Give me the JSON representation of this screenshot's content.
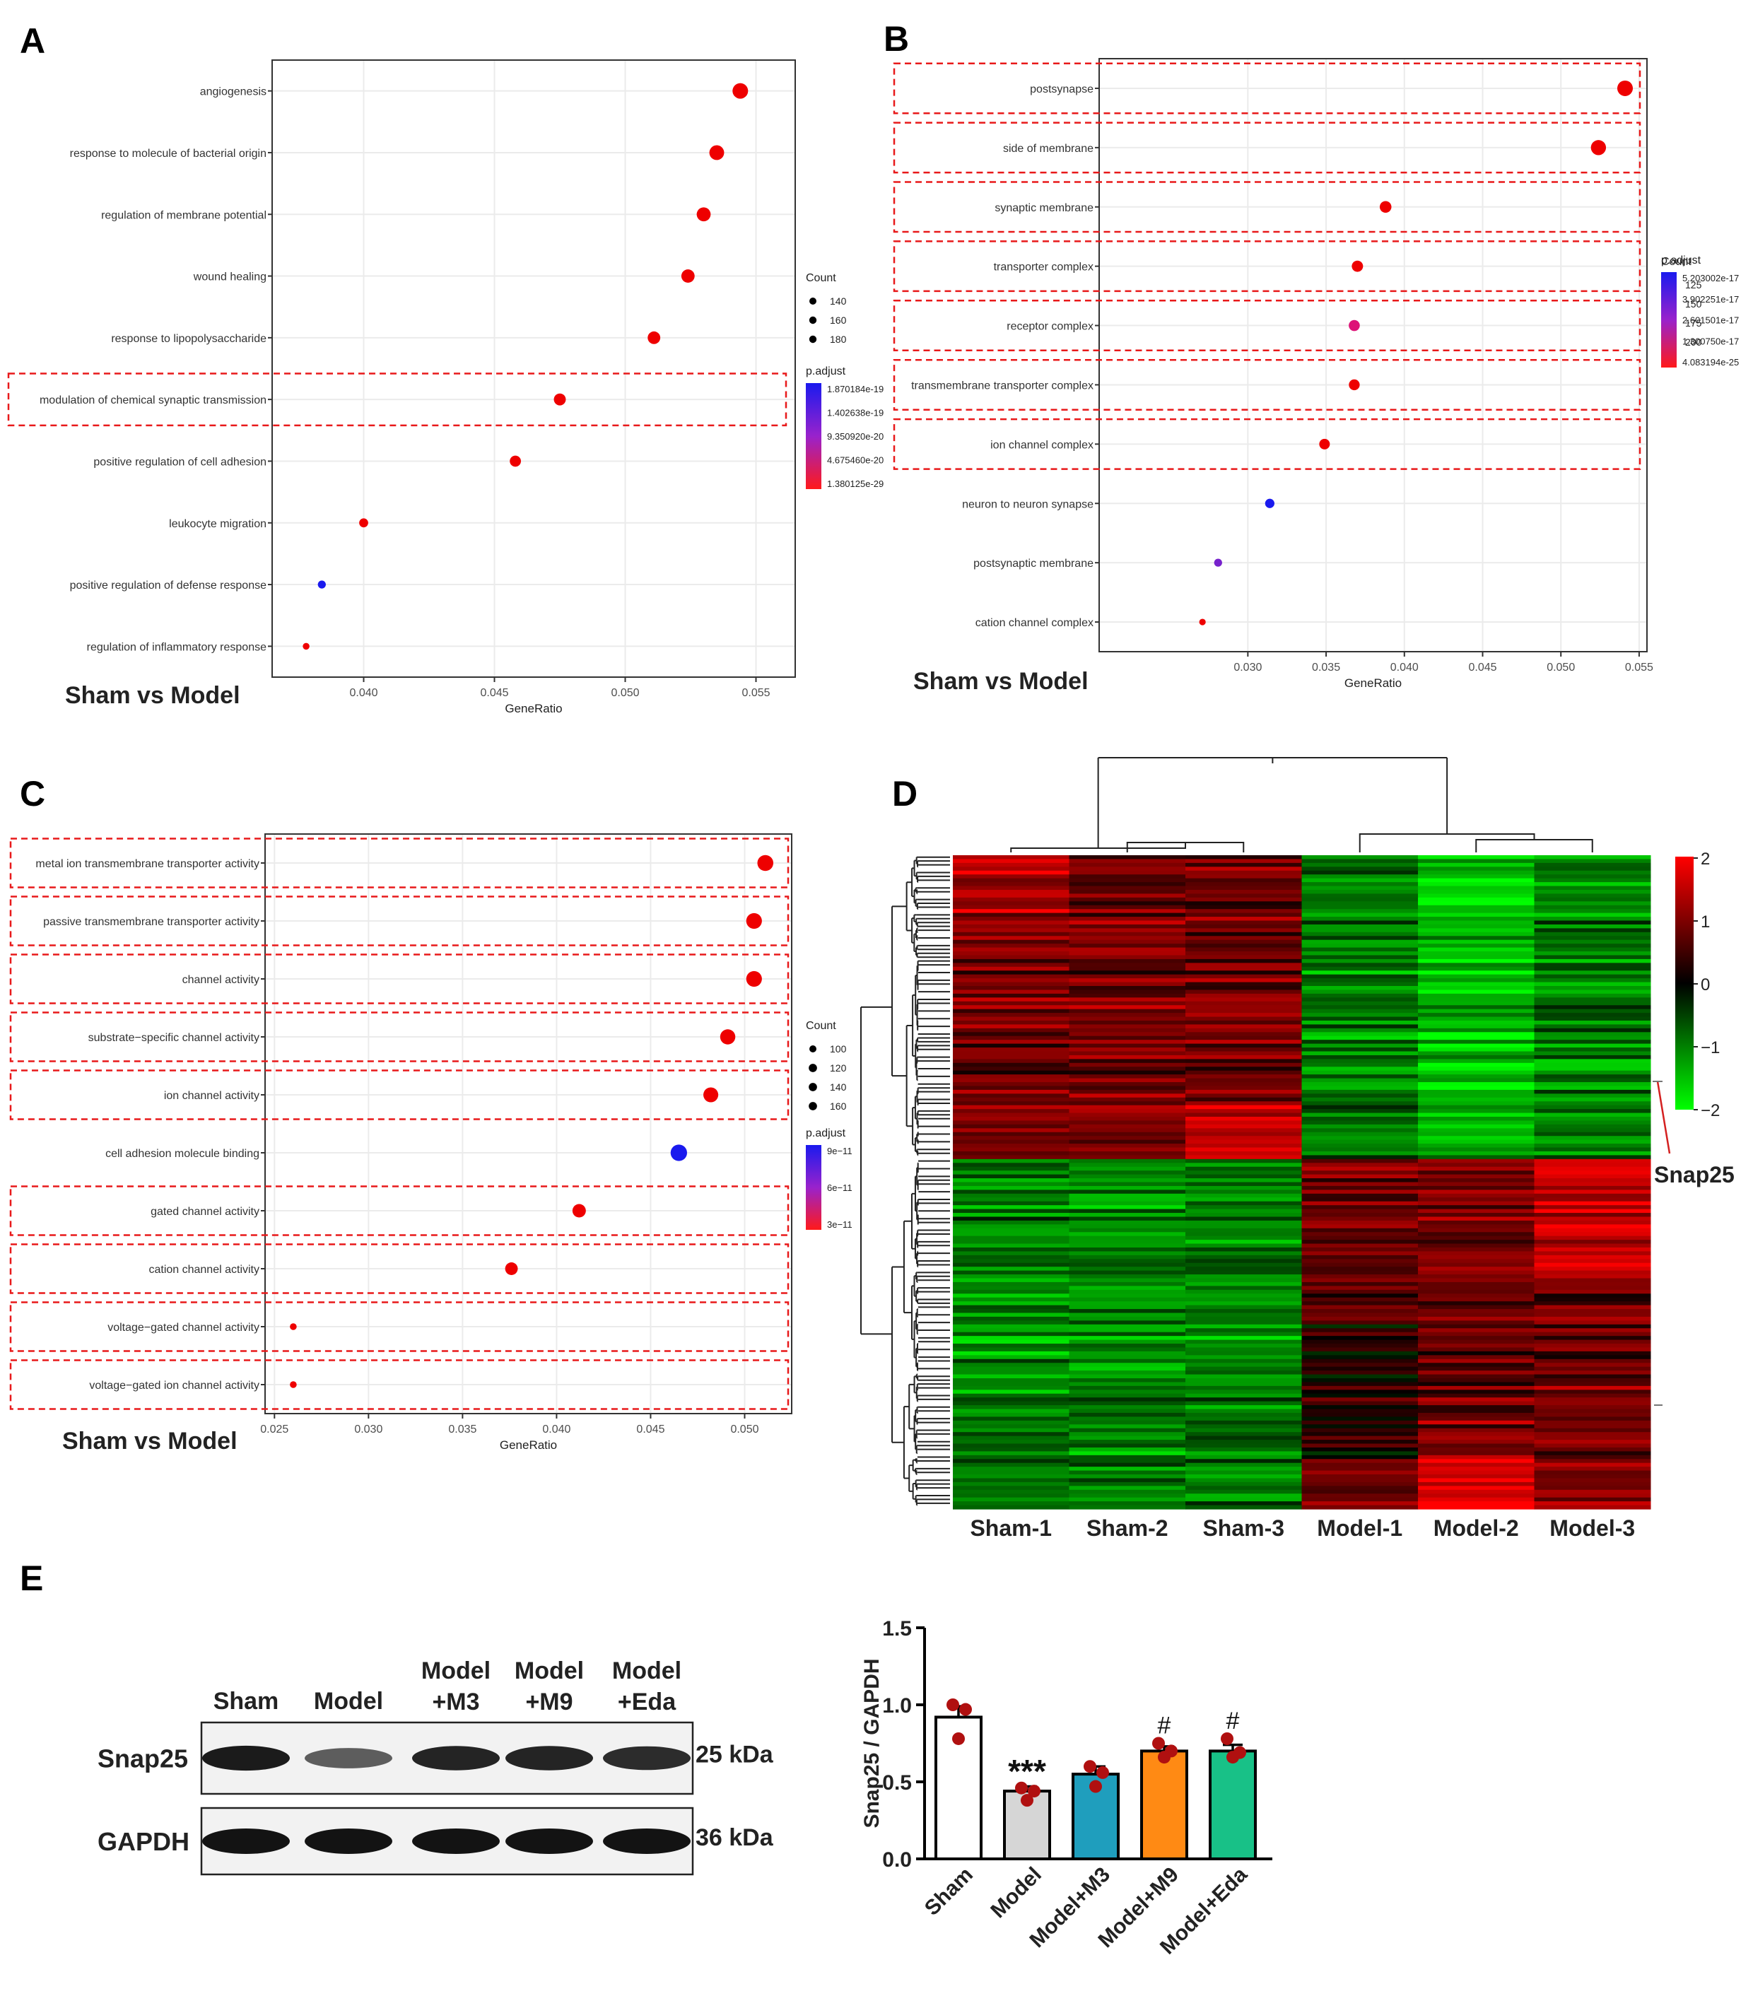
{
  "chart_data": [
    {
      "panel": "A",
      "type": "scatter",
      "subtitle": "Sham vs Model",
      "xlabel": "GeneRatio",
      "xlim": [
        0.0365,
        0.0565
      ],
      "xticks": [
        "0.040",
        "0.045",
        "0.050",
        "0.055"
      ],
      "terms": [
        "angiogenesis",
        "response to molecule of bacterial origin",
        "regulation of membrane potential",
        "wound healing",
        "response to lipopolysaccharide",
        "modulation of chemical synaptic transmission",
        "positive regulation of cell adhesion",
        "leukocyte migration",
        "positive regulation of defense response",
        "regulation of inflammatory response"
      ],
      "x": [
        0.0544,
        0.0535,
        0.053,
        0.0524,
        0.0511,
        0.0475,
        0.0458,
        0.04,
        0.0384,
        0.0378
      ],
      "color": [
        "#ee0000",
        "#ee0000",
        "#ee0000",
        "#ee0000",
        "#ee0000",
        "#ee0000",
        "#ee0000",
        "#ee0000",
        "#1a1aee",
        "#ee0000"
      ],
      "dot_scale": [
        1.0,
        0.93,
        0.86,
        0.8,
        0.74,
        0.68,
        0.61,
        0.42,
        0.33,
        0.22
      ],
      "highlighted": [
        false,
        false,
        false,
        false,
        false,
        true,
        false,
        false,
        false,
        false
      ],
      "size_legend": {
        "title": "Count",
        "labels": [
          "140",
          "160",
          "180"
        ]
      },
      "color_legend": {
        "title": "p.adjust",
        "labels": [
          "1.870184e-19",
          "1.402638e-19",
          "9.350920e-20",
          "4.675460e-20",
          "1.380125e-29"
        ]
      }
    },
    {
      "panel": "B",
      "type": "scatter",
      "subtitle": "Sham vs Model",
      "xlabel": "GeneRatio",
      "xlim": [
        0.0205,
        0.0555
      ],
      "xticks": [
        "0.030",
        "0.035",
        "0.040",
        "0.045",
        "0.050",
        "0.055"
      ],
      "terms": [
        "postsynapse",
        "side of membrane",
        "synaptic membrane",
        "transporter complex",
        "receptor complex",
        "transmembrane transporter complex",
        "ion channel complex",
        "neuron to neuron synapse",
        "postsynaptic membrane",
        "cation channel complex"
      ],
      "x": [
        0.0541,
        0.0524,
        0.0388,
        0.037,
        0.0368,
        0.0368,
        0.0349,
        0.0314,
        0.0281,
        0.0271
      ],
      "color": [
        "#ee0000",
        "#ee0000",
        "#ee0000",
        "#ee0000",
        "#dd1177",
        "#ee0000",
        "#ee0000",
        "#1a1aee",
        "#7722cc",
        "#ee0000"
      ],
      "dot_scale": [
        1.0,
        0.96,
        0.66,
        0.62,
        0.6,
        0.58,
        0.56,
        0.45,
        0.33,
        0.2
      ],
      "highlighted": [
        true,
        true,
        true,
        true,
        true,
        true,
        true,
        false,
        false,
        false
      ],
      "size_legend": {
        "title": "Count",
        "labels": [
          "125",
          "150",
          "175",
          "200"
        ]
      },
      "color_legend": {
        "title": "p.adjust",
        "labels": [
          "5.203002e-17",
          "3.902251e-17",
          "2.601501e-17",
          "1.300750e-17",
          "4.083194e-25"
        ]
      }
    },
    {
      "panel": "C",
      "type": "scatter",
      "subtitle": "Sham vs Model",
      "xlabel": "GeneRatio",
      "xlim": [
        0.0245,
        0.0525
      ],
      "xticks": [
        "0.025",
        "0.030",
        "0.035",
        "0.040",
        "0.045",
        "0.050"
      ],
      "terms": [
        "metal ion transmembrane transporter activity",
        "passive transmembrane transporter activity",
        "channel activity",
        "substrate−specific channel activity",
        "ion channel activity",
        "cell adhesion molecule binding",
        "gated channel activity",
        "cation channel activity",
        "voltage−gated channel activity",
        "voltage−gated ion channel activity"
      ],
      "x": [
        0.0511,
        0.0505,
        0.0505,
        0.0491,
        0.0482,
        0.0465,
        0.0412,
        0.0376,
        0.026,
        0.026
      ],
      "color": [
        "#ee0000",
        "#ee0000",
        "#ee0000",
        "#ee0000",
        "#ee0000",
        "#1a1aee",
        "#ee0000",
        "#ee0000",
        "#ee0000",
        "#ee0000"
      ],
      "dot_scale": [
        0.92,
        0.9,
        0.9,
        0.86,
        0.84,
        0.96,
        0.72,
        0.66,
        0.2,
        0.2
      ],
      "highlighted": [
        true,
        true,
        true,
        true,
        true,
        false,
        true,
        true,
        true,
        true
      ],
      "size_legend": {
        "title": "Count",
        "labels": [
          "100",
          "120",
          "140",
          "160"
        ]
      },
      "color_legend": {
        "title": "p.adjust",
        "labels": [
          "9e−11",
          "6e−11",
          "3e−11"
        ]
      }
    },
    {
      "panel": "D",
      "type": "heatmap",
      "columns": [
        "Sham-1",
        "Sham-2",
        "Sham-3",
        "Model-1",
        "Model-2",
        "Model-3"
      ],
      "scale_labels": [
        "2",
        "1",
        "0",
        "−1",
        "−2"
      ],
      "annotation": "Snap25",
      "cluster_sizes": [
        0.5,
        0.5
      ]
    },
    {
      "panel": "E",
      "type": "bar",
      "blot_columns": [
        "Sham",
        "Model",
        "Model\n+M3",
        "Model\n+M9",
        "Model\n+Eda"
      ],
      "blot_rows": [
        "Snap25",
        "GAPDH"
      ],
      "blot_sizes": [
        "25 kDa",
        "36 kDa"
      ],
      "band_intensity": [
        [
          0.95,
          0.55,
          0.9,
          0.9,
          0.85
        ],
        [
          1.0,
          1.0,
          1.0,
          1.0,
          1.0
        ]
      ],
      "categories": [
        "Sham",
        "Model",
        "Model+M3",
        "Model+M9",
        "Model+Eda"
      ],
      "values": [
        0.92,
        0.44,
        0.55,
        0.7,
        0.7
      ],
      "errors": [
        0.07,
        0.03,
        0.05,
        0.03,
        0.04
      ],
      "points": [
        [
          1.0,
          0.97,
          0.78
        ],
        [
          0.46,
          0.44,
          0.38
        ],
        [
          0.6,
          0.56,
          0.47
        ],
        [
          0.75,
          0.7,
          0.66
        ],
        [
          0.78,
          0.69,
          0.66
        ]
      ],
      "colors": [
        "#ffffff",
        "#d6d6d6",
        "#1f9ebd",
        "#ff8a14",
        "#18c187"
      ],
      "significance": [
        "",
        "***",
        "",
        "#",
        "#"
      ],
      "ylabel": "Snap25 / GAPDH",
      "ylim": [
        0,
        1.5
      ],
      "yticks": [
        "0.0",
        "0.5",
        "1.0",
        "1.5"
      ]
    }
  ],
  "panel_labels": [
    "A",
    "B",
    "C",
    "D",
    "E"
  ]
}
